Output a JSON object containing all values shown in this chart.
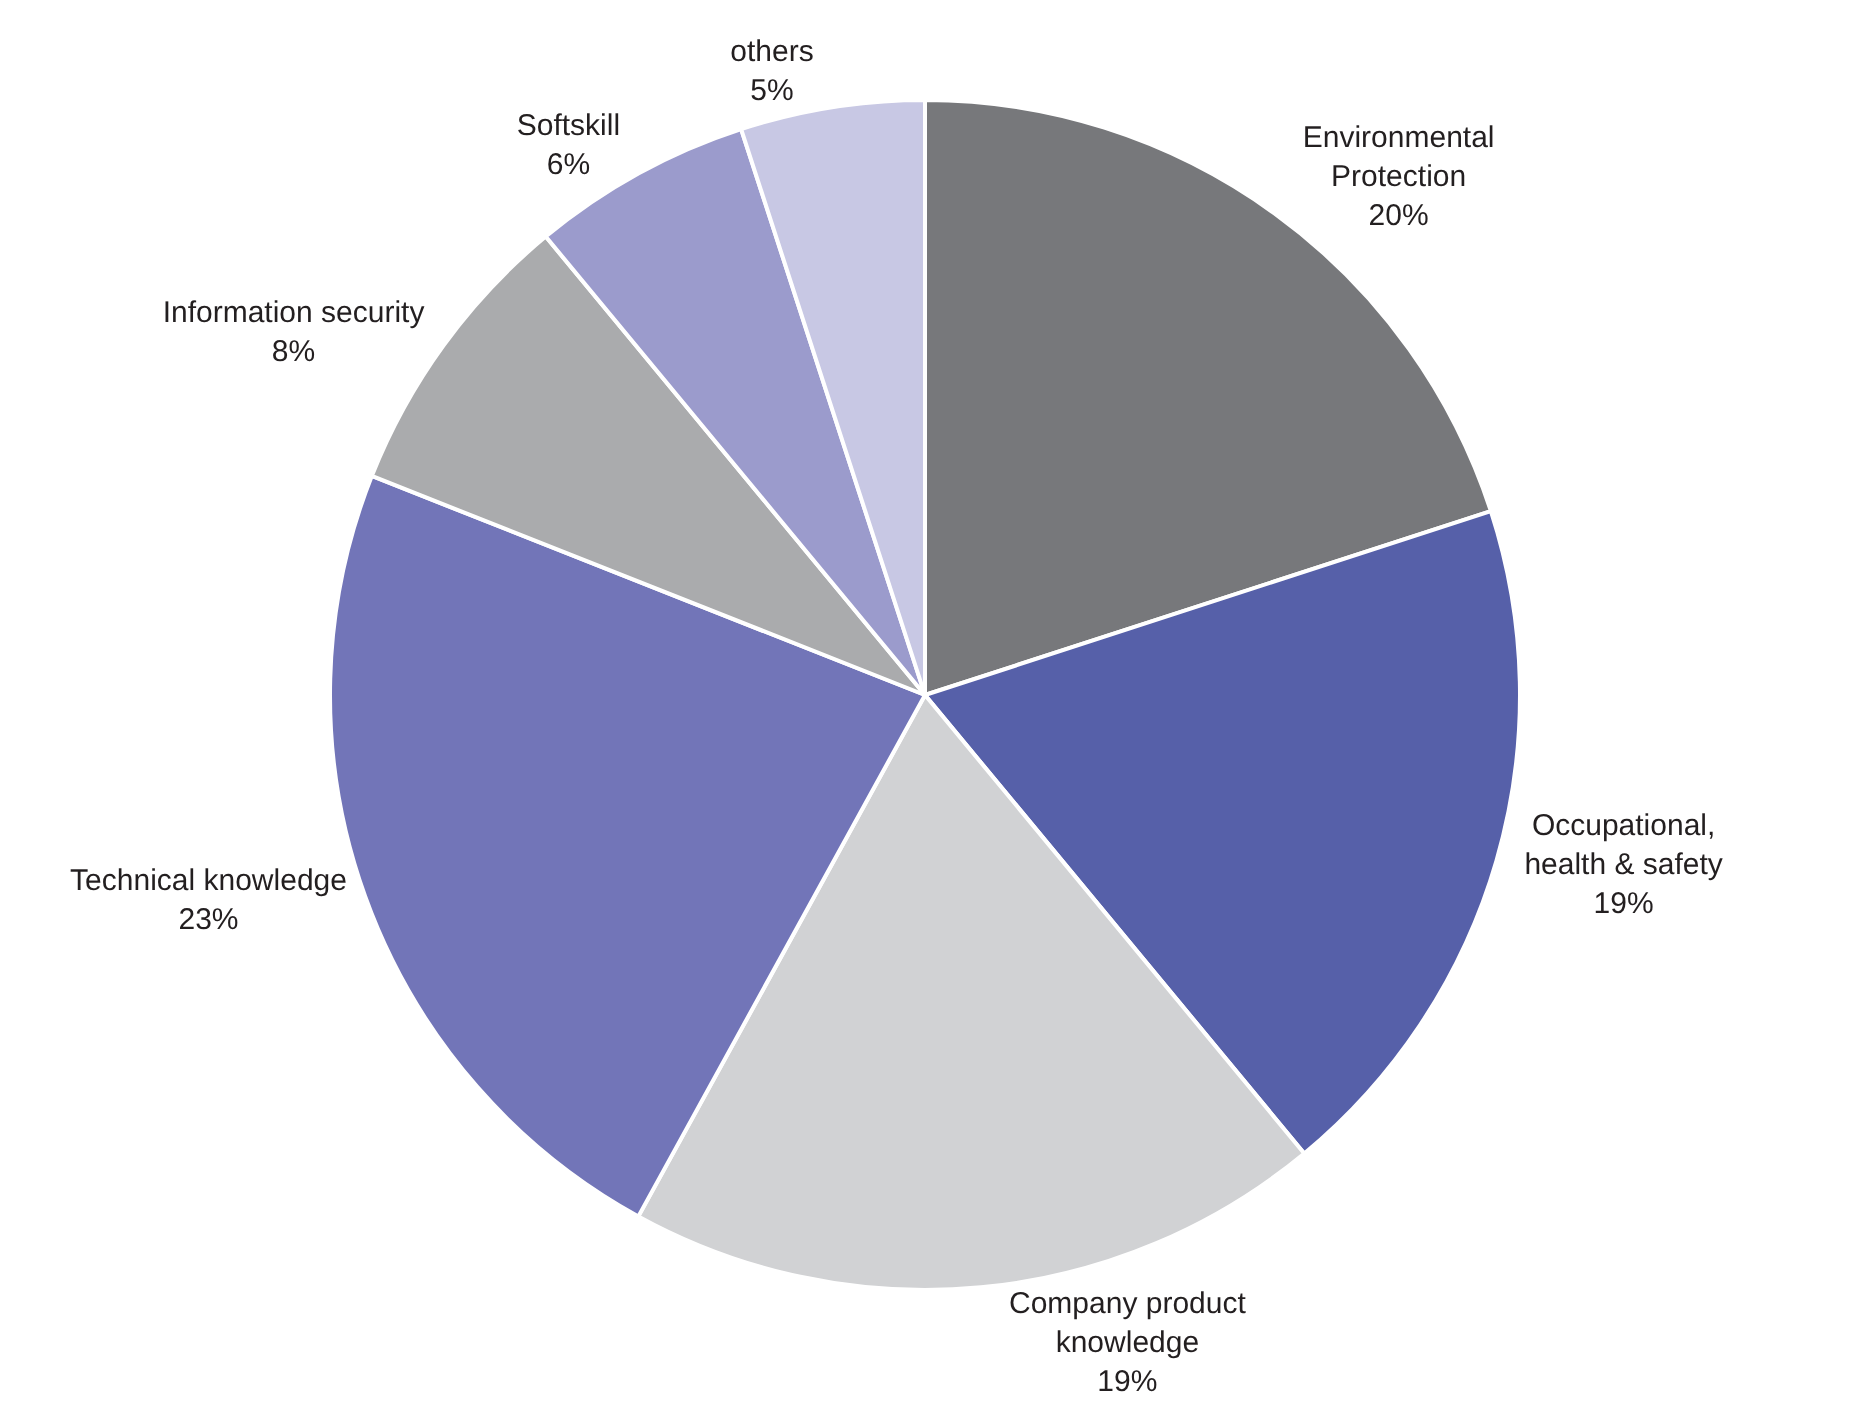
{
  "chart_data": {
    "type": "pie",
    "categories": [
      "Environmental\nProtection",
      "Occupational,\nhealth & safety",
      "Company product\nknowledge",
      "Technical knowledge",
      "Information security",
      "Softskill",
      "others"
    ],
    "values": [
      20,
      19,
      19,
      23,
      8,
      6,
      5
    ],
    "value_labels": [
      "20%",
      "19%",
      "19%",
      "23%",
      "8%",
      "6%",
      "5%"
    ],
    "colors": [
      "#77787b",
      "#5660a9",
      "#d1d2d4",
      "#7275b8",
      "#aaabad",
      "#9b9bcc",
      "#c8c8e4"
    ],
    "legend": false
  }
}
